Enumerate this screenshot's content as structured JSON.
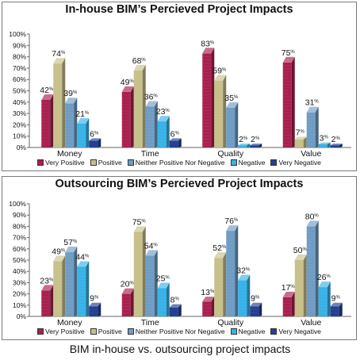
{
  "caption": "BIM in-house vs. outsourcing project impacts",
  "chart_data": [
    {
      "type": "bar",
      "title": "In-house BIM’s Percieved Project Impacts",
      "xlabel": "",
      "ylabel": "",
      "ylim": [
        0,
        100
      ],
      "y_ticks": [
        "0%",
        "10%",
        "20%",
        "30%",
        "40%",
        "50%",
        "60%",
        "70%",
        "80%",
        "90%",
        "100%"
      ],
      "categories": [
        "Money",
        "Time",
        "Quality",
        "Value"
      ],
      "value_suffix": "%",
      "legend_placement": "bottom",
      "grid": false,
      "series": [
        {
          "name": "Very Positive",
          "values": [
            42,
            49,
            83,
            75
          ]
        },
        {
          "name": "Positive",
          "values": [
            74,
            68,
            59,
            7
          ]
        },
        {
          "name": "Neither Positive Nor Negative",
          "values": [
            39,
            36,
            35,
            31
          ]
        },
        {
          "name": "Negative",
          "values": [
            21,
            23,
            2,
            3
          ]
        },
        {
          "name": "Very Negative",
          "values": [
            6,
            6,
            2,
            2
          ]
        }
      ]
    },
    {
      "type": "bar",
      "title": "Outsourcing BIM’s Percieved Project Impacts",
      "xlabel": "",
      "ylabel": "",
      "ylim": [
        0,
        100
      ],
      "y_ticks": [
        "0%",
        "10%",
        "20%",
        "30%",
        "40%",
        "50%",
        "60%",
        "70%",
        "80%",
        "90%",
        "100%"
      ],
      "categories": [
        "Money",
        "Time",
        "Quality",
        "Value"
      ],
      "value_suffix": "%",
      "legend_placement": "bottom",
      "grid": false,
      "series": [
        {
          "name": "Very Positive",
          "values": [
            23,
            20,
            13,
            17
          ]
        },
        {
          "name": "Positive",
          "values": [
            49,
            75,
            52,
            50
          ]
        },
        {
          "name": "Neither Positive Nor Negative",
          "values": [
            57,
            54,
            76,
            80
          ]
        },
        {
          "name": "Negative",
          "values": [
            44,
            25,
            32,
            26
          ]
        },
        {
          "name": "Very Negative",
          "values": [
            9,
            8,
            9,
            9
          ]
        }
      ]
    }
  ],
  "colors": {
    "very_positive": "#a8204f",
    "positive": "#c7c08a",
    "neither": "#6e9cc4",
    "negative": "#37b2e8",
    "very_negative": "#243f93"
  }
}
